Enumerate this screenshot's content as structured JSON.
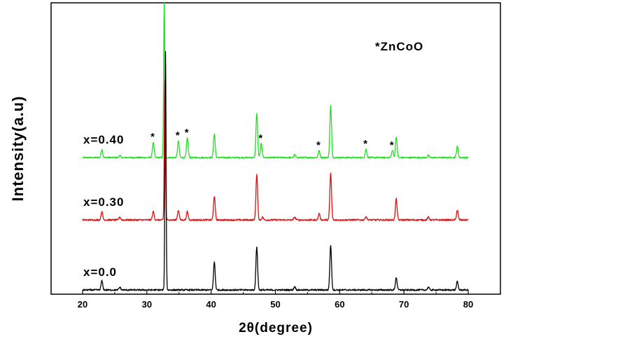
{
  "chart_data": {
    "type": "line",
    "xlabel": "2θ(degree)",
    "ylabel": "Intensity(a.u)",
    "xlim": [
      15,
      87
    ],
    "x_ticks": [
      20,
      30,
      40,
      50,
      60,
      70,
      80
    ],
    "y_ticks_shown": false,
    "grid": false,
    "annotation": "*ZnCoO",
    "phase_marker": "*",
    "marked_peaks_2theta": [
      31.0,
      34.9,
      36.3,
      47.8,
      56.8,
      64.1,
      68.2
    ],
    "baseline_offsets": [
      0,
      100,
      189
    ],
    "series": [
      {
        "name": "x=0.0",
        "color": "#000000",
        "peaks": [
          [
            23.0,
            13
          ],
          [
            25.8,
            4
          ],
          [
            32.9,
            340
          ],
          [
            40.5,
            40
          ],
          [
            47.1,
            62
          ],
          [
            53.0,
            5
          ],
          [
            58.6,
            64
          ],
          [
            68.8,
            18
          ],
          [
            73.8,
            4
          ],
          [
            78.3,
            12
          ]
        ]
      },
      {
        "name": "x=0.30",
        "color": "#e01010",
        "peaks": [
          [
            23.0,
            12
          ],
          [
            25.8,
            4
          ],
          [
            31.0,
            12
          ],
          [
            32.8,
            200
          ],
          [
            34.9,
            14
          ],
          [
            36.3,
            12
          ],
          [
            40.5,
            34
          ],
          [
            47.1,
            65
          ],
          [
            48.0,
            4
          ],
          [
            53.0,
            4
          ],
          [
            56.8,
            9
          ],
          [
            58.6,
            67
          ],
          [
            64.1,
            5
          ],
          [
            68.8,
            30
          ],
          [
            73.8,
            4
          ],
          [
            78.3,
            14
          ]
        ]
      },
      {
        "name": "x=0.40",
        "color": "#22e022",
        "peaks": [
          [
            23.0,
            12
          ],
          [
            25.8,
            3
          ],
          [
            31.0,
            22
          ],
          [
            32.7,
            228
          ],
          [
            34.9,
            24
          ],
          [
            36.3,
            28
          ],
          [
            40.5,
            34
          ],
          [
            47.1,
            63
          ],
          [
            47.8,
            20
          ],
          [
            53.0,
            4
          ],
          [
            56.8,
            10
          ],
          [
            58.6,
            74
          ],
          [
            64.1,
            12
          ],
          [
            68.2,
            10
          ],
          [
            68.8,
            30
          ],
          [
            73.8,
            3
          ],
          [
            78.3,
            16
          ]
        ]
      }
    ]
  }
}
